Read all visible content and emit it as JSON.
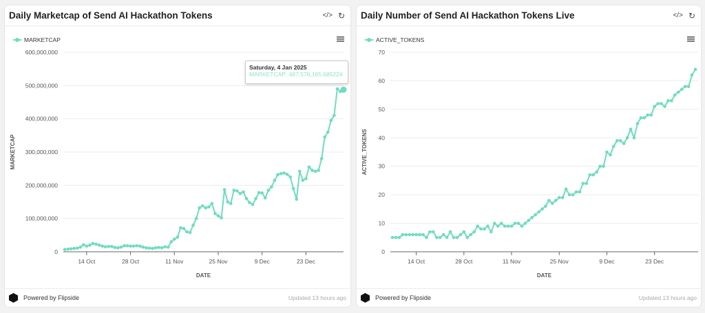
{
  "footer": {
    "powered": "Powered by Flipside",
    "updated": "Updated 13 hours ago"
  },
  "icons": {
    "code": "code-icon",
    "refresh": "refresh-icon",
    "menu": "hamburger-menu-icon"
  },
  "colors": {
    "series": "#6fdcbf"
  },
  "tooltip": {
    "date": "Saturday, 4 Jan 2025",
    "text": "MARKETCAP: 487,576,165.685224"
  },
  "chart_data": [
    {
      "type": "line",
      "title": "Daily Marketcap of Send AI Hackathon Tokens",
      "xlabel": "DATE",
      "ylabel": "MARKETCAP",
      "x_start": "2024-10-07",
      "x_end": "2025-01-04",
      "x_ticks": [
        "14 Oct",
        "28 Oct",
        "11 Nov",
        "25 Nov",
        "9 Dec",
        "23 Dec"
      ],
      "y_ticks": [
        "0",
        "100,000,000",
        "200,000,000",
        "300,000,000",
        "400,000,000",
        "500,000,000",
        "600,000,000"
      ],
      "ylim": [
        0,
        600000000
      ],
      "grid": true,
      "legend": "top-left",
      "series": [
        {
          "name": "MARKETCAP",
          "values": [
            7000000,
            8000000,
            9000000,
            10000000,
            11000000,
            14000000,
            21000000,
            17000000,
            20000000,
            25000000,
            23000000,
            20000000,
            17000000,
            15000000,
            16000000,
            16000000,
            13000000,
            12000000,
            14000000,
            18000000,
            18000000,
            17000000,
            17000000,
            18000000,
            17000000,
            14000000,
            12000000,
            11000000,
            10000000,
            12000000,
            13000000,
            12000000,
            15000000,
            14000000,
            30000000,
            38000000,
            44000000,
            72000000,
            70000000,
            60000000,
            58000000,
            80000000,
            100000000,
            132000000,
            138000000,
            132000000,
            135000000,
            145000000,
            115000000,
            108000000,
            102000000,
            187000000,
            150000000,
            145000000,
            185000000,
            183000000,
            175000000,
            180000000,
            160000000,
            148000000,
            142000000,
            160000000,
            178000000,
            177000000,
            162000000,
            185000000,
            195000000,
            215000000,
            232000000,
            235000000,
            237000000,
            233000000,
            225000000,
            190000000,
            158000000,
            242000000,
            215000000,
            220000000,
            255000000,
            245000000,
            242000000,
            245000000,
            280000000,
            345000000,
            360000000,
            395000000,
            410000000,
            490000000,
            482000000,
            487576165.685224
          ]
        }
      ]
    },
    {
      "type": "line",
      "title": "Daily Number of Send AI Hackathon Tokens Live",
      "xlabel": "DATE",
      "ylabel": "ACTIVE_TOKENS",
      "x_start": "2024-10-07",
      "x_end": "2025-01-04",
      "x_ticks": [
        "14 Oct",
        "28 Oct",
        "11 Nov",
        "25 Nov",
        "9 Dec",
        "23 Dec"
      ],
      "y_ticks": [
        "0",
        "10",
        "20",
        "30",
        "40",
        "50",
        "60",
        "70"
      ],
      "ylim": [
        0,
        70
      ],
      "grid": true,
      "legend": "top-left",
      "series": [
        {
          "name": "ACTIVE_TOKENS",
          "values": [
            5,
            5,
            5,
            6,
            6,
            6,
            6,
            6,
            6,
            6,
            5,
            7,
            7,
            5,
            5,
            6,
            5,
            7,
            5,
            5,
            6,
            7,
            5,
            6,
            7,
            9,
            8,
            8,
            9,
            7,
            10,
            9,
            10,
            9,
            9,
            9,
            10,
            10,
            9,
            10,
            11,
            12,
            13,
            14,
            15,
            16,
            18,
            17,
            18,
            19,
            19,
            22,
            20,
            20,
            21,
            21,
            24,
            24,
            27,
            27,
            28,
            30,
            30,
            35,
            34,
            37,
            39,
            39,
            38,
            40,
            43,
            40,
            45,
            47,
            47,
            48,
            48,
            51,
            52,
            52,
            51,
            53,
            53,
            55,
            56,
            57,
            58,
            58,
            62,
            64
          ]
        }
      ]
    }
  ]
}
